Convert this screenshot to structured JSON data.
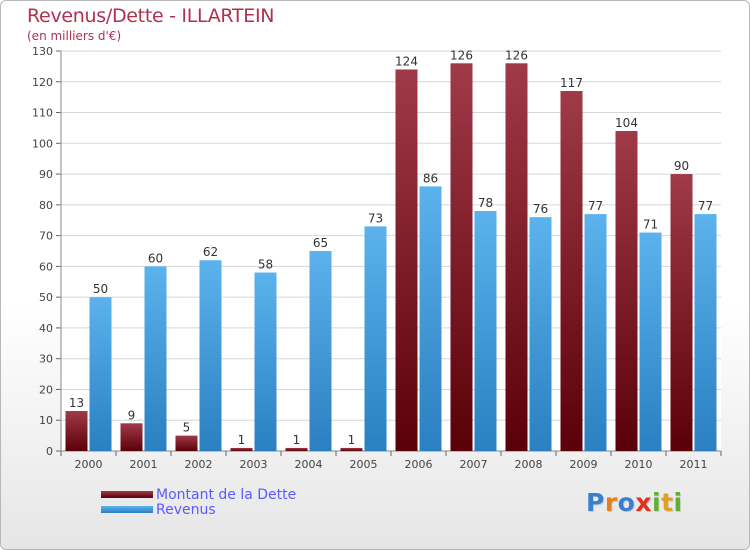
{
  "chart_data": {
    "type": "bar",
    "title": "Revenus/Dette - ILLARTEIN",
    "subtitle": "(en milliers d'€)",
    "categories": [
      "2000",
      "2001",
      "2002",
      "2003",
      "2004",
      "2005",
      "2006",
      "2007",
      "2008",
      "2009",
      "2010",
      "2011"
    ],
    "series": [
      {
        "name": "Montant de la Dette",
        "values": [
          13,
          9,
          5,
          1,
          1,
          1,
          124,
          126,
          126,
          117,
          104,
          90
        ]
      },
      {
        "name": "Revenus",
        "values": [
          50,
          60,
          62,
          58,
          65,
          73,
          86,
          78,
          76,
          77,
          71,
          77
        ]
      }
    ],
    "ylim": [
      0,
      130
    ],
    "yticks": [
      0,
      10,
      20,
      30,
      40,
      50,
      60,
      70,
      80,
      90,
      100,
      110,
      120,
      130
    ],
    "grid": true,
    "legend_position": "bottom-left",
    "colors": {
      "dette_top": "#a03a48",
      "dette_bottom": "#5a0008",
      "revenus_top": "#5cb2ec",
      "revenus_bottom": "#2a80c0",
      "title": "#b03050",
      "legend_text": "#5a5aff"
    }
  },
  "logo": {
    "letters": [
      {
        "char": "P",
        "color": "#3a7fd0"
      },
      {
        "char": "r",
        "color": "#e08020"
      },
      {
        "char": "o",
        "color": "#3a7fd0"
      },
      {
        "char": "x",
        "color": "#e03020"
      },
      {
        "char": "i",
        "color": "#60b030"
      },
      {
        "char": "t",
        "color": "#e0a020"
      },
      {
        "char": "i",
        "color": "#60b030"
      }
    ]
  }
}
